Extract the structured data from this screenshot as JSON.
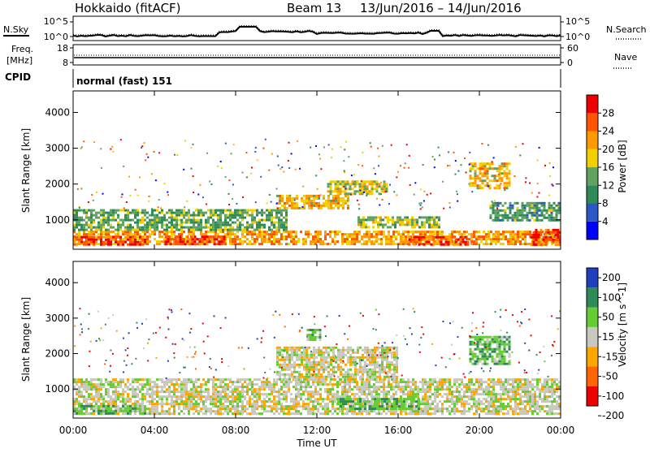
{
  "header": {
    "station": "Hokkaido (fitACF)",
    "beam": "Beam 13",
    "date_range": "13/Jun/2016 – 14/Jun/2016"
  },
  "top_panel": {
    "left_label": "N.Sky",
    "right_label": "N.Search",
    "left_ticks": [
      "10^5",
      "10^0"
    ],
    "right_ticks": [
      "10^5",
      "10^0"
    ]
  },
  "freq_panel": {
    "left_label_1": "Freq.",
    "left_label_2": "[MHz]",
    "right_label": "Nave",
    "left_ticks": [
      "18",
      "8"
    ],
    "right_ticks": [
      "60",
      "0"
    ]
  },
  "cpid": {
    "label": "CPID",
    "value": "normal (fast) 151"
  },
  "power_panel": {
    "ylabel": "Slant Range [km]",
    "yticks": [
      "4000",
      "3000",
      "2000",
      "1000"
    ],
    "colorbar_label": "Power [dB]",
    "colorbar_ticks": [
      "28",
      "24",
      "20",
      "16",
      "12",
      "8",
      "4"
    ],
    "colors": [
      "#0000ff",
      "#2c57c6",
      "#2e8b57",
      "#5fa35f",
      "#f2d000",
      "#ff9900",
      "#ff5500",
      "#ee0000"
    ]
  },
  "velocity_panel": {
    "ylabel": "Slant Range [km]",
    "yticks": [
      "4000",
      "3000",
      "2000",
      "1000"
    ],
    "colorbar_label": "Velocity [m s^-1]",
    "colorbar_ticks": [
      "200",
      "100",
      "50",
      "15",
      "-15",
      "-50",
      "-100",
      "-200"
    ],
    "colors": [
      "#1f3fbf",
      "#2e8b57",
      "#66cc33",
      "#c8c8c0",
      "#ffa500",
      "#ff6600",
      "#ee0000"
    ]
  },
  "x_axis": {
    "ticks": [
      "00:00",
      "04:00",
      "08:00",
      "12:00",
      "16:00",
      "20:00",
      "00:00"
    ],
    "label": "Time UT"
  },
  "chart_data": [
    {
      "type": "heatmap",
      "quantity": "Power",
      "unit": "dB",
      "x_range_hours": [
        0,
        24
      ],
      "y_range_km": [
        180,
        4600
      ],
      "color_range": [
        0,
        32
      ],
      "bands": [
        {
          "t0": 0.0,
          "t1": 24.0,
          "r0": 300,
          "r1": 700,
          "value": 22
        },
        {
          "t0": 0.0,
          "t1": 3.5,
          "r0": 300,
          "r1": 550,
          "value": 28
        },
        {
          "t0": 4.5,
          "t1": 7.5,
          "r0": 320,
          "r1": 560,
          "value": 28
        },
        {
          "t0": 0.0,
          "t1": 10.5,
          "r0": 700,
          "r1": 1300,
          "value": 13
        },
        {
          "t0": 10.0,
          "t1": 13.5,
          "r0": 1350,
          "r1": 1700,
          "value": 20
        },
        {
          "t0": 12.5,
          "t1": 15.5,
          "r0": 1700,
          "r1": 2100,
          "value": 18
        },
        {
          "t0": 14.0,
          "t1": 18.0,
          "r0": 800,
          "r1": 1100,
          "value": 16
        },
        {
          "t0": 16.5,
          "t1": 19.5,
          "r0": 300,
          "r1": 550,
          "value": 26
        },
        {
          "t0": 19.5,
          "t1": 21.5,
          "r0": 1900,
          "r1": 2600,
          "value": 20
        },
        {
          "t0": 20.5,
          "t1": 24.0,
          "r0": 1000,
          "r1": 1500,
          "value": 12
        },
        {
          "t0": 22.5,
          "t1": 24.0,
          "r0": 300,
          "r1": 750,
          "value": 28
        }
      ]
    },
    {
      "type": "heatmap",
      "quantity": "Velocity",
      "unit": "m s^-1",
      "x_range_hours": [
        0,
        24
      ],
      "y_range_km": [
        180,
        4600
      ],
      "color_range": [
        -250,
        250
      ],
      "bands": [
        {
          "t0": 0.0,
          "t1": 24.0,
          "r0": 300,
          "r1": 1300,
          "value": 0
        },
        {
          "t0": 0.0,
          "t1": 3.5,
          "r0": 300,
          "r1": 550,
          "value": 40
        },
        {
          "t0": 10.0,
          "t1": 16.0,
          "r0": 1300,
          "r1": 2200,
          "value": 0
        },
        {
          "t0": 13.0,
          "t1": 17.0,
          "r0": 450,
          "r1": 750,
          "value": 40
        },
        {
          "t0": 19.5,
          "t1": 21.5,
          "r0": 1700,
          "r1": 2500,
          "value": 35
        },
        {
          "t0": 11.5,
          "t1": 12.2,
          "r0": 2400,
          "r1": 2700,
          "value": 35
        }
      ]
    }
  ]
}
